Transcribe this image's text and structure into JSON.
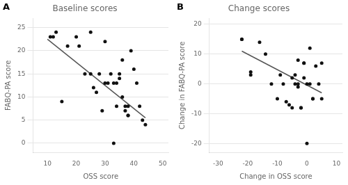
{
  "chart_data": [
    {
      "type": "scatter",
      "title": "Baseline scores",
      "x_label": "OSS score",
      "y_label": "FABQ-PA score",
      "annotation": "A",
      "xlim": [
        5,
        52
      ],
      "ylim": [
        -2,
        27
      ],
      "xticks": [
        10,
        20,
        30,
        40,
        50
      ],
      "yticks": [
        0,
        5,
        10,
        15,
        20,
        25
      ],
      "grid": "y",
      "series": [
        {
          "type": "scatter",
          "marker": "circle",
          "color": "#111111",
          "x": [
            11,
            12,
            13,
            15,
            17,
            20,
            21,
            23,
            25,
            25,
            26,
            27,
            28,
            29,
            30,
            30,
            31,
            32,
            33,
            33,
            34,
            34,
            35,
            35,
            36,
            36,
            37,
            37,
            38,
            38,
            38,
            39,
            40,
            41,
            42,
            43,
            44
          ],
          "values": [
            23,
            23,
            24,
            9,
            21,
            23,
            21,
            15,
            15,
            24,
            12,
            11,
            15,
            7,
            13,
            22,
            13,
            15,
            0,
            13,
            8,
            13,
            14,
            15,
            10,
            18,
            7,
            8,
            6,
            6,
            8,
            20,
            16,
            13,
            8,
            5,
            4
          ]
        },
        {
          "type": "line",
          "line_style": "solid",
          "color": "#555555",
          "x": [
            10,
            44
          ],
          "values": [
            22.5,
            5.5
          ]
        }
      ]
    },
    {
      "type": "scatter",
      "title": "Change scores",
      "x_label": "Change in OSS score",
      "y_label": "Change in FABQ-PA score",
      "annotation": "B",
      "xlim": [
        -33,
        12
      ],
      "ylim": [
        -23,
        22
      ],
      "xticks": [
        -30,
        -20,
        -10,
        0,
        10
      ],
      "yticks": [
        -20,
        -10,
        0,
        10,
        20
      ],
      "grid": "y",
      "series": [
        {
          "type": "scatter",
          "marker": "circle",
          "color": "#111111",
          "x": [
            -22,
            -22,
            -19,
            -19,
            -16,
            -14,
            -12,
            -10,
            -9,
            -8,
            -7,
            -6,
            -5,
            -5,
            -4,
            -4,
            -3,
            -3,
            -3,
            -2,
            -2,
            -1,
            -1,
            -1,
            0,
            0,
            1,
            1,
            2,
            2,
            3,
            4,
            5,
            5
          ],
          "values": [
            15,
            15,
            4,
            3,
            14,
            10,
            0,
            -5,
            3,
            0,
            -6,
            -7,
            -8,
            2,
            0,
            3,
            8,
            0,
            -1,
            -8,
            -8,
            7,
            7,
            2,
            -20,
            0,
            0,
            12,
            -5,
            -5,
            6,
            0,
            -5,
            7
          ]
        },
        {
          "type": "line",
          "line_style": "solid",
          "color": "#555555",
          "x": [
            -22,
            5
          ],
          "values": [
            11,
            -3
          ]
        }
      ]
    }
  ]
}
